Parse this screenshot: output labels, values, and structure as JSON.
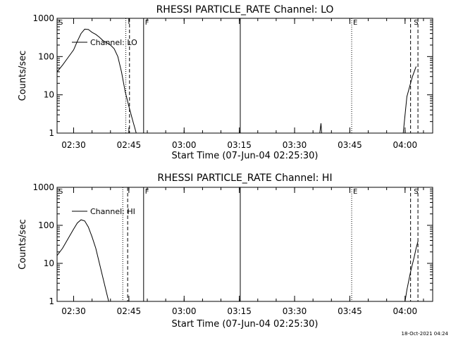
{
  "chart_data": [
    {
      "type": "line",
      "title": "RHESSI PARTICLE_RATE Channel: LO",
      "xlabel": "Start Time (07-Jun-04 02:25:30)",
      "ylabel": "Counts/sec",
      "ylog": true,
      "ylim": [
        1,
        1000
      ],
      "xlim": [
        "02:25:30",
        "04:07:30"
      ],
      "x_ticks": [
        "02:30",
        "02:45",
        "03:00",
        "03:15",
        "03:30",
        "03:45",
        "04:00"
      ],
      "y_ticks": [
        "1",
        "10",
        "100",
        "1000"
      ],
      "legend": {
        "label": "Channel: LO",
        "placement": "top-left"
      },
      "series": [
        {
          "name": "Channel: LO",
          "segments": [
            [
              [
                "02:25:30",
                40
              ],
              [
                "02:27:00",
                60
              ],
              [
                "02:28:30",
                95
              ],
              [
                "02:30:00",
                150
              ],
              [
                "02:31:00",
                250
              ],
              [
                "02:32:00",
                400
              ],
              [
                "02:33:00",
                520
              ],
              [
                "02:34:00",
                510
              ],
              [
                "02:35:00",
                430
              ],
              [
                "02:36:00",
                380
              ],
              [
                "02:37:00",
                320
              ],
              [
                "02:38:00",
                260
              ],
              [
                "02:39:00",
                230
              ],
              [
                "02:40:00",
                200
              ],
              [
                "02:41:00",
                160
              ],
              [
                "02:42:00",
                100
              ],
              [
                "02:43:00",
                40
              ],
              [
                "02:44:00",
                12
              ],
              [
                "02:45:00",
                5
              ],
              [
                "02:46:00",
                2.2
              ],
              [
                "02:46:40",
                1.3
              ],
              [
                "02:47:00",
                1
              ]
            ],
            [
              [
                "03:36:50",
                1
              ],
              [
                "03:37:10",
                1.8
              ],
              [
                "03:37:20",
                1
              ]
            ],
            [
              [
                "03:59:30",
                1
              ],
              [
                "04:00:00",
                3
              ],
              [
                "04:00:30",
                9
              ],
              [
                "04:01:30",
                20
              ],
              [
                "04:02:00",
                30
              ],
              [
                "04:03:00",
                55
              ]
            ]
          ]
        }
      ],
      "markers": [
        {
          "label": "S",
          "time": "02:25:30",
          "style": "none"
        },
        {
          "label": "",
          "time": "02:44:10",
          "style": "dotted"
        },
        {
          "label": "",
          "time": "02:45:10",
          "style": "dashed"
        },
        {
          "label": "F",
          "time": "02:49:00",
          "style": "solid"
        },
        {
          "label": "",
          "time": "03:15:15",
          "style": "solid"
        },
        {
          "label": "E",
          "time": "03:45:30",
          "style": "dotted"
        },
        {
          "label": "",
          "time": "04:01:30",
          "style": "dashed"
        },
        {
          "label": "S",
          "time": "04:02:00",
          "style": "none"
        },
        {
          "label": "",
          "time": "04:03:30",
          "style": "dashed"
        }
      ]
    },
    {
      "type": "line",
      "title": "RHESSI PARTICLE_RATE Channel: HI",
      "xlabel": "Start Time (07-Jun-04 02:25:30)",
      "ylabel": "Counts/sec",
      "ylog": true,
      "ylim": [
        1,
        1000
      ],
      "xlim": [
        "02:25:30",
        "04:07:30"
      ],
      "x_ticks": [
        "02:30",
        "02:45",
        "03:00",
        "03:15",
        "03:30",
        "03:45",
        "04:00"
      ],
      "y_ticks": [
        "1",
        "10",
        "100",
        "1000"
      ],
      "legend": {
        "label": "Channel: HI",
        "placement": "top-left"
      },
      "series": [
        {
          "name": "Channel: HI",
          "segments": [
            [
              [
                "02:25:30",
                16
              ],
              [
                "02:27:00",
                25
              ],
              [
                "02:28:30",
                45
              ],
              [
                "02:30:00",
                80
              ],
              [
                "02:31:00",
                115
              ],
              [
                "02:32:00",
                140
              ],
              [
                "02:33:00",
                130
              ],
              [
                "02:34:00",
                90
              ],
              [
                "02:35:00",
                50
              ],
              [
                "02:36:00",
                25
              ],
              [
                "02:37:00",
                10
              ],
              [
                "02:38:00",
                4
              ],
              [
                "02:39:00",
                1.6
              ],
              [
                "02:39:30",
                1
              ]
            ],
            [
              [
                "04:00:00",
                1
              ],
              [
                "04:00:30",
                2
              ],
              [
                "04:01:30",
                6
              ],
              [
                "04:02:30",
                15
              ],
              [
                "04:03:00",
                25
              ],
              [
                "04:03:30",
                38
              ]
            ]
          ]
        }
      ],
      "markers": [
        {
          "label": "S",
          "time": "02:25:30",
          "style": "none"
        },
        {
          "label": "",
          "time": "02:43:20",
          "style": "dotted"
        },
        {
          "label": "",
          "time": "02:44:40",
          "style": "dashed"
        },
        {
          "label": "F",
          "time": "02:49:00",
          "style": "solid"
        },
        {
          "label": "",
          "time": "03:15:15",
          "style": "solid"
        },
        {
          "label": "E",
          "time": "03:45:30",
          "style": "dotted"
        },
        {
          "label": "",
          "time": "04:01:30",
          "style": "dashed"
        },
        {
          "label": "S",
          "time": "04:02:00",
          "style": "none"
        },
        {
          "label": "",
          "time": "04:03:30",
          "style": "dashed"
        }
      ]
    }
  ],
  "footer": {
    "timestamp": "18-Oct-2021 04:24"
  }
}
